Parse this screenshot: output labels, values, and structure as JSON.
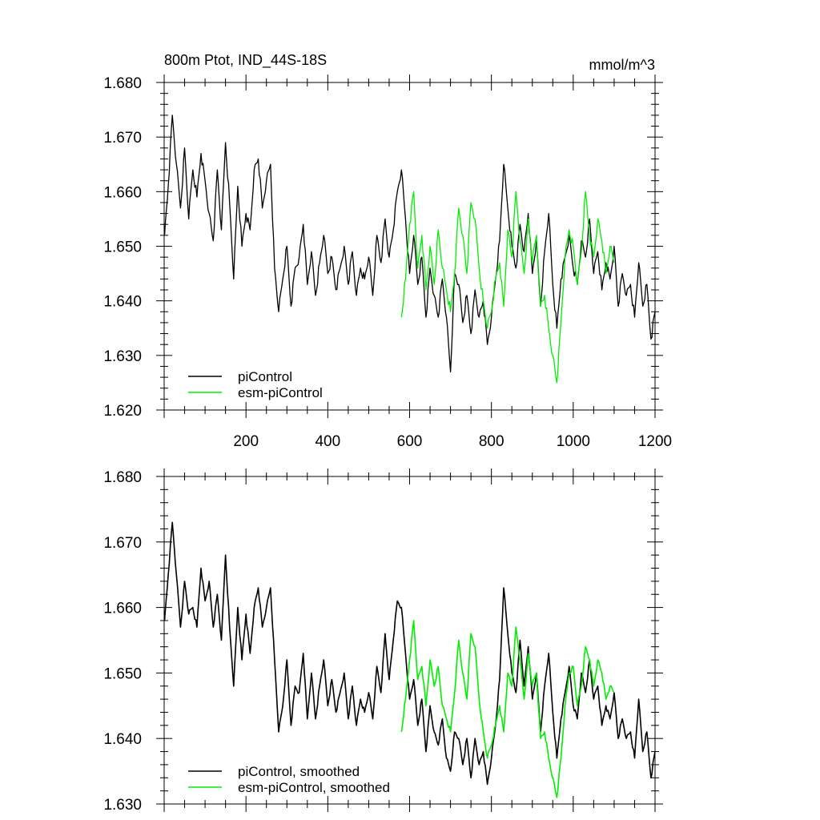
{
  "chart_data": [
    {
      "type": "line",
      "title": "800m Ptot, IND_44S-18S",
      "units": "mmol/m^3",
      "xlim": [
        0,
        1200
      ],
      "ylim": [
        1.62,
        1.68
      ],
      "xticks": [
        200,
        400,
        600,
        800,
        1000,
        1200
      ],
      "xtick_labels": [
        "200",
        "400",
        "600",
        "800",
        "1000",
        "1200"
      ],
      "yticks": [
        1.62,
        1.63,
        1.64,
        1.65,
        1.66,
        1.67,
        1.68
      ],
      "ytick_labels": [
        "1.620",
        "1.630",
        "1.640",
        "1.650",
        "1.660",
        "1.670",
        "1.680"
      ],
      "grid": false,
      "legend_position": "bottom-left",
      "series": [
        {
          "name": "piControl",
          "color": "#000000",
          "x": [
            1,
            10,
            20,
            30,
            40,
            50,
            60,
            70,
            80,
            90,
            100,
            110,
            120,
            130,
            140,
            150,
            160,
            170,
            180,
            190,
            200,
            210,
            220,
            230,
            240,
            250,
            260,
            270,
            280,
            290,
            300,
            310,
            320,
            330,
            340,
            350,
            360,
            370,
            380,
            390,
            400,
            410,
            420,
            430,
            440,
            450,
            460,
            470,
            480,
            490,
            500,
            510,
            520,
            530,
            540,
            550,
            560,
            570,
            580,
            590,
            600,
            610,
            620,
            630,
            640,
            650,
            660,
            670,
            680,
            690,
            700,
            710,
            720,
            730,
            740,
            750,
            760,
            770,
            780,
            790,
            800,
            810,
            820,
            830,
            840,
            850,
            860,
            870,
            880,
            890,
            900,
            910,
            920,
            930,
            940,
            950,
            960,
            970,
            980,
            990,
            1000,
            1010,
            1020,
            1030,
            1040,
            1050,
            1060,
            1070,
            1080,
            1090,
            1100,
            1110,
            1120,
            1130,
            1140,
            1150,
            1160,
            1170,
            1180,
            1190,
            1200
          ],
          "values": [
            1.652,
            1.661,
            1.674,
            1.665,
            1.657,
            1.668,
            1.655,
            1.664,
            1.659,
            1.667,
            1.662,
            1.656,
            1.651,
            1.664,
            1.653,
            1.669,
            1.658,
            1.644,
            1.661,
            1.65,
            1.656,
            1.653,
            1.664,
            1.666,
            1.657,
            1.662,
            1.665,
            1.646,
            1.638,
            1.644,
            1.65,
            1.639,
            1.646,
            1.648,
            1.654,
            1.643,
            1.649,
            1.641,
            1.647,
            1.652,
            1.645,
            1.648,
            1.642,
            1.646,
            1.65,
            1.643,
            1.649,
            1.641,
            1.646,
            1.644,
            1.648,
            1.641,
            1.652,
            1.647,
            1.655,
            1.648,
            1.653,
            1.66,
            1.664,
            1.655,
            1.645,
            1.652,
            1.643,
            1.648,
            1.637,
            1.646,
            1.641,
            1.637,
            1.644,
            1.637,
            1.627,
            1.645,
            1.643,
            1.636,
            1.641,
            1.634,
            1.642,
            1.637,
            1.64,
            1.632,
            1.637,
            1.644,
            1.651,
            1.665,
            1.657,
            1.65,
            1.646,
            1.654,
            1.649,
            1.656,
            1.645,
            1.651,
            1.639,
            1.649,
            1.656,
            1.643,
            1.635,
            1.644,
            1.648,
            1.652,
            1.646,
            1.643,
            1.651,
            1.648,
            1.655,
            1.645,
            1.649,
            1.642,
            1.647,
            1.644,
            1.65,
            1.639,
            1.645,
            1.641,
            1.643,
            1.637,
            1.647,
            1.639,
            1.643,
            1.633,
            1.638
          ]
        },
        {
          "name": "esm-piControl",
          "color": "#00ee00",
          "x": [
            580,
            590,
            600,
            610,
            620,
            630,
            640,
            650,
            660,
            670,
            680,
            690,
            700,
            710,
            720,
            730,
            740,
            750,
            760,
            770,
            780,
            790,
            800,
            810,
            820,
            830,
            840,
            850,
            860,
            870,
            880,
            890,
            900,
            910,
            920,
            930,
            940,
            950,
            960,
            970,
            980,
            990,
            1000,
            1010,
            1020,
            1030,
            1040,
            1050,
            1060,
            1070,
            1080,
            1090,
            1100
          ],
          "values": [
            1.637,
            1.644,
            1.654,
            1.66,
            1.646,
            1.652,
            1.642,
            1.65,
            1.643,
            1.653,
            1.646,
            1.642,
            1.638,
            1.645,
            1.657,
            1.652,
            1.645,
            1.658,
            1.655,
            1.646,
            1.64,
            1.635,
            1.638,
            1.644,
            1.647,
            1.639,
            1.653,
            1.648,
            1.66,
            1.651,
            1.645,
            1.655,
            1.647,
            1.652,
            1.639,
            1.641,
            1.635,
            1.63,
            1.625,
            1.636,
            1.648,
            1.653,
            1.65,
            1.643,
            1.649,
            1.66,
            1.652,
            1.648,
            1.655,
            1.651,
            1.645,
            1.65,
            1.647
          ]
        }
      ]
    },
    {
      "type": "line",
      "xlim": [
        0,
        1200
      ],
      "ylim": [
        1.63,
        1.68
      ],
      "yticks": [
        1.63,
        1.64,
        1.65,
        1.66,
        1.67,
        1.68
      ],
      "ytick_labels": [
        "1.630",
        "1.640",
        "1.650",
        "1.660",
        "1.670",
        "1.680"
      ],
      "grid": false,
      "legend_position": "bottom-left",
      "series": [
        {
          "name": "piControl, smoothed",
          "color": "#000000",
          "x": [
            1,
            10,
            20,
            30,
            40,
            50,
            60,
            70,
            80,
            90,
            100,
            110,
            120,
            130,
            140,
            150,
            160,
            170,
            180,
            190,
            200,
            210,
            220,
            230,
            240,
            250,
            260,
            270,
            280,
            290,
            300,
            310,
            320,
            330,
            340,
            350,
            360,
            370,
            380,
            390,
            400,
            410,
            420,
            430,
            440,
            450,
            460,
            470,
            480,
            490,
            500,
            510,
            520,
            530,
            540,
            550,
            560,
            570,
            580,
            590,
            600,
            610,
            620,
            630,
            640,
            650,
            660,
            670,
            680,
            690,
            700,
            710,
            720,
            730,
            740,
            750,
            760,
            770,
            780,
            790,
            800,
            810,
            820,
            830,
            840,
            850,
            860,
            870,
            880,
            890,
            900,
            910,
            920,
            930,
            940,
            950,
            960,
            970,
            980,
            990,
            1000,
            1010,
            1020,
            1030,
            1040,
            1050,
            1060,
            1070,
            1080,
            1090,
            1100,
            1110,
            1120,
            1130,
            1140,
            1150,
            1160,
            1170,
            1180,
            1190,
            1200
          ],
          "values": [
            1.658,
            1.665,
            1.673,
            1.665,
            1.657,
            1.664,
            1.659,
            1.66,
            1.657,
            1.666,
            1.661,
            1.664,
            1.657,
            1.662,
            1.655,
            1.668,
            1.657,
            1.648,
            1.66,
            1.652,
            1.659,
            1.653,
            1.66,
            1.663,
            1.657,
            1.66,
            1.663,
            1.652,
            1.641,
            1.645,
            1.652,
            1.642,
            1.648,
            1.647,
            1.653,
            1.643,
            1.65,
            1.643,
            1.648,
            1.652,
            1.645,
            1.649,
            1.644,
            1.647,
            1.65,
            1.643,
            1.648,
            1.642,
            1.646,
            1.644,
            1.647,
            1.643,
            1.651,
            1.647,
            1.656,
            1.649,
            1.655,
            1.661,
            1.66,
            1.653,
            1.646,
            1.649,
            1.642,
            1.646,
            1.638,
            1.645,
            1.641,
            1.639,
            1.643,
            1.637,
            1.635,
            1.641,
            1.64,
            1.636,
            1.64,
            1.634,
            1.64,
            1.636,
            1.638,
            1.633,
            1.637,
            1.642,
            1.649,
            1.663,
            1.656,
            1.65,
            1.647,
            1.655,
            1.648,
            1.654,
            1.646,
            1.65,
            1.641,
            1.648,
            1.653,
            1.644,
            1.637,
            1.643,
            1.647,
            1.651,
            1.645,
            1.643,
            1.65,
            1.647,
            1.652,
            1.646,
            1.648,
            1.642,
            1.645,
            1.643,
            1.647,
            1.64,
            1.643,
            1.64,
            1.641,
            1.637,
            1.646,
            1.638,
            1.641,
            1.634,
            1.638
          ]
        },
        {
          "name": "esm-piControl, smoothed",
          "color": "#00ee00",
          "x": [
            580,
            590,
            600,
            610,
            620,
            630,
            640,
            650,
            660,
            670,
            680,
            690,
            700,
            710,
            720,
            730,
            740,
            750,
            760,
            770,
            780,
            790,
            800,
            810,
            820,
            830,
            840,
            850,
            860,
            870,
            880,
            890,
            900,
            910,
            920,
            930,
            940,
            950,
            960,
            970,
            980,
            990,
            1000,
            1010,
            1020,
            1030,
            1040,
            1050,
            1060,
            1070,
            1080,
            1090,
            1100
          ],
          "values": [
            1.641,
            1.646,
            1.652,
            1.658,
            1.649,
            1.651,
            1.645,
            1.652,
            1.648,
            1.651,
            1.645,
            1.643,
            1.641,
            1.647,
            1.655,
            1.65,
            1.646,
            1.656,
            1.654,
            1.646,
            1.641,
            1.637,
            1.639,
            1.642,
            1.645,
            1.641,
            1.65,
            1.648,
            1.657,
            1.652,
            1.646,
            1.653,
            1.648,
            1.65,
            1.64,
            1.641,
            1.637,
            1.634,
            1.631,
            1.637,
            1.645,
            1.65,
            1.651,
            1.645,
            1.648,
            1.654,
            1.652,
            1.648,
            1.652,
            1.65,
            1.646,
            1.648,
            1.647
          ]
        }
      ]
    }
  ]
}
